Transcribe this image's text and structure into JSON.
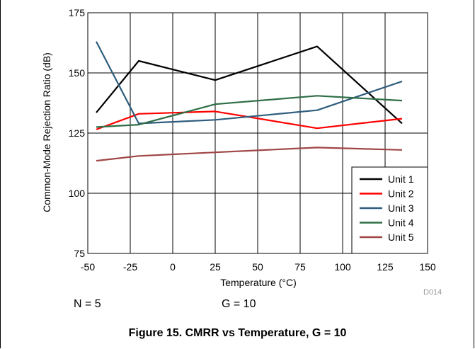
{
  "chart_data": {
    "type": "line",
    "xlabel": "Temperature (°C)",
    "ylabel": "Common-Mode Rejection Ratio (dB)",
    "xlim": [
      -50,
      150
    ],
    "ylim": [
      75,
      175
    ],
    "xticks": [
      "-50",
      "-25",
      "0",
      "25",
      "50",
      "75",
      "100",
      "125",
      "150"
    ],
    "yticks": [
      "75",
      "100",
      "125",
      "150",
      "175"
    ],
    "grid": true,
    "legend_position": "bottom-right",
    "series": [
      {
        "name": "Unit 1",
        "color": "#000000",
        "x": [
          -45,
          -20,
          25,
          85,
          135
        ],
        "y": [
          133.5,
          155,
          147,
          161,
          129
        ]
      },
      {
        "name": "Unit 2",
        "color": "#ff0000",
        "x": [
          -45,
          -20,
          25,
          85,
          135
        ],
        "y": [
          126.5,
          133,
          134,
          127,
          131
        ]
      },
      {
        "name": "Unit 3",
        "color": "#2e5d7d",
        "x": [
          -45,
          -20,
          25,
          85,
          135
        ],
        "y": [
          163,
          129,
          130.5,
          134.5,
          146.5
        ]
      },
      {
        "name": "Unit 4",
        "color": "#2e6e46",
        "x": [
          -45,
          -20,
          25,
          85,
          135
        ],
        "y": [
          127.5,
          128.5,
          137,
          140.5,
          138.5
        ]
      },
      {
        "name": "Unit 5",
        "color": "#a04545",
        "x": [
          -45,
          -20,
          25,
          85,
          135
        ],
        "y": [
          113.5,
          115.5,
          117,
          119,
          118
        ]
      }
    ]
  },
  "annotations": {
    "n_label": "N = 5",
    "g_label": "G = 10",
    "figure_code": "D014"
  },
  "caption": "Figure 15. CMRR vs Temperature, G = 10"
}
